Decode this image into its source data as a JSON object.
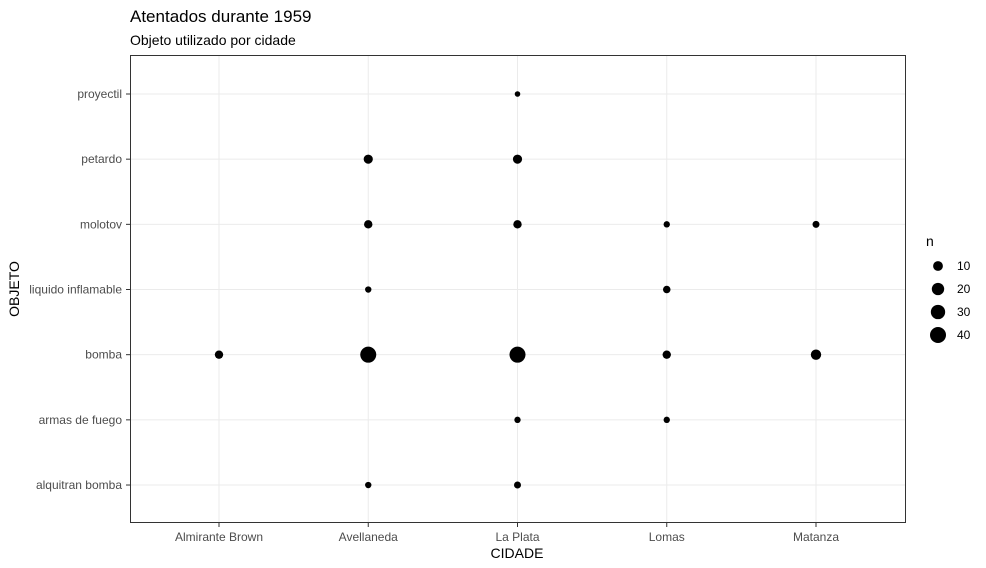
{
  "chart_data": {
    "type": "scatter",
    "title": "Atentados durante 1959",
    "subtitle": "Objeto utilizado por cidade",
    "xlabel": "CIDADE",
    "ylabel": "OBJETO",
    "x_categories": [
      "Almirante Brown",
      "Avellaneda",
      "La Plata",
      "Lomas",
      "Matanza"
    ],
    "y_categories": [
      "alquitran bomba",
      "armas de fuego",
      "bomba",
      "liquido inflamable",
      "molotov",
      "petardo",
      "proyectil"
    ],
    "size_legend": {
      "title": "n",
      "values": [
        10,
        20,
        30,
        40
      ]
    },
    "grid": true,
    "legend_position": "right",
    "point_color": "#000000",
    "points": [
      {
        "x": "Almirante Brown",
        "y": "bomba",
        "n": 6
      },
      {
        "x": "Avellaneda",
        "y": "alquitran bomba",
        "n": 2
      },
      {
        "x": "Avellaneda",
        "y": "bomba",
        "n": 40
      },
      {
        "x": "Avellaneda",
        "y": "liquido inflamable",
        "n": 2
      },
      {
        "x": "Avellaneda",
        "y": "molotov",
        "n": 6
      },
      {
        "x": "Avellaneda",
        "y": "petardo",
        "n": 8
      },
      {
        "x": "La Plata",
        "y": "alquitran bomba",
        "n": 3
      },
      {
        "x": "La Plata",
        "y": "armas de fuego",
        "n": 2
      },
      {
        "x": "La Plata",
        "y": "bomba",
        "n": 40
      },
      {
        "x": "La Plata",
        "y": "molotov",
        "n": 6
      },
      {
        "x": "La Plata",
        "y": "petardo",
        "n": 8
      },
      {
        "x": "La Plata",
        "y": "proyectil",
        "n": 1
      },
      {
        "x": "Lomas",
        "y": "armas de fuego",
        "n": 2
      },
      {
        "x": "Lomas",
        "y": "bomba",
        "n": 6
      },
      {
        "x": "Lomas",
        "y": "liquido inflamable",
        "n": 4
      },
      {
        "x": "Lomas",
        "y": "molotov",
        "n": 2
      },
      {
        "x": "Matanza",
        "y": "bomba",
        "n": 12
      },
      {
        "x": "Matanza",
        "y": "molotov",
        "n": 3
      }
    ]
  }
}
